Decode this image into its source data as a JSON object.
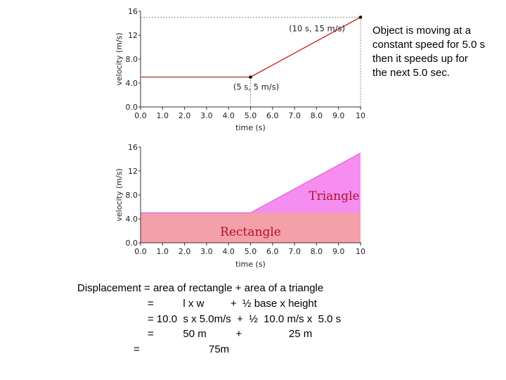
{
  "note": {
    "lines": [
      "Object is moving at a",
      "constant speed for 5.0 s",
      "then it speeds up for",
      "the next 5.0 sec."
    ]
  },
  "chart_data": [
    {
      "type": "line",
      "xlabel": "time (s)",
      "ylabel": "velocity (m/s)",
      "xlim": [
        0,
        10
      ],
      "ylim": [
        0,
        16
      ],
      "x_ticks": [
        "0.0",
        "1.0",
        "2.0",
        "3.0",
        "4.0",
        "5.0",
        "6.0",
        "7.0",
        "8.0",
        "9.0",
        "10"
      ],
      "y_ticks": [
        {
          "value": 0,
          "label": "0.0"
        },
        {
          "value": 4,
          "label": "4.0"
        },
        {
          "value": 8,
          "label": "8.0"
        },
        {
          "value": 12,
          "label": "12"
        },
        {
          "value": 16,
          "label": "16"
        }
      ],
      "series": [
        {
          "x": [
            0,
            5,
            10
          ],
          "y": [
            5,
            5,
            15
          ],
          "color": "#cc1111"
        }
      ],
      "points": [
        {
          "x": 5,
          "y": 5,
          "label": "(5 s, 5 m/s)"
        },
        {
          "x": 10,
          "y": 15,
          "label": "(10 s, 15 m/s)"
        }
      ],
      "grid": false
    },
    {
      "type": "area",
      "xlabel": "time (s)",
      "ylabel": "velocity (m/s)",
      "xlim": [
        0,
        10
      ],
      "ylim": [
        0,
        16
      ],
      "x_ticks": [
        "0.0",
        "1.0",
        "2.0",
        "3.0",
        "4.0",
        "5.0",
        "6.0",
        "7.0",
        "8.0",
        "9.0",
        "10"
      ],
      "y_ticks": [
        {
          "value": 0,
          "label": "0.0"
        },
        {
          "value": 4,
          "label": "4.0"
        },
        {
          "value": 8,
          "label": "8.0"
        },
        {
          "value": 12,
          "label": "12"
        },
        {
          "value": 16,
          "label": "16"
        }
      ],
      "regions": [
        {
          "name": "Rectangle",
          "polygon": [
            [
              0,
              0
            ],
            [
              10,
              0
            ],
            [
              10,
              5
            ],
            [
              0,
              5
            ]
          ],
          "color": "#f4a0a8"
        },
        {
          "name": "Triangle",
          "polygon": [
            [
              5,
              5
            ],
            [
              10,
              5
            ],
            [
              10,
              15
            ]
          ],
          "color": "#f58ef0"
        }
      ],
      "grid": false
    }
  ],
  "calc": {
    "line1": "Displacement = area of rectangle + area of a triangle",
    "line2": "=          l x w         +  ½ base x height",
    "line3": "= 10.0  s x 5.0m/s  +  ½  10.0 m/s x  5.0 s",
    "line4": "=          50 m          +                25 m",
    "line5_eq": "=",
    "line5_val": "75m"
  }
}
